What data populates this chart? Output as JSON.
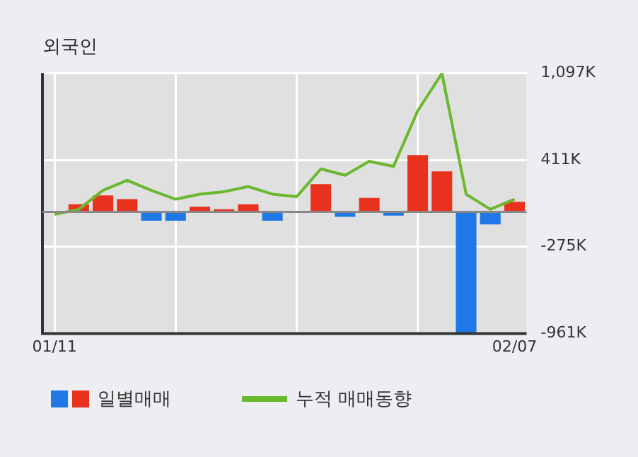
{
  "chart_data": {
    "type": "bar",
    "title": "외국인",
    "categories": [
      "01/11",
      null,
      null,
      null,
      null,
      null,
      null,
      null,
      null,
      null,
      null,
      null,
      null,
      null,
      null,
      null,
      null,
      null,
      null,
      "02/07"
    ],
    "series": [
      {
        "name": "일별매매",
        "colors": [
          "#1e78e6",
          "#e8321e",
          "#e8321e",
          "#e8321e",
          "#1e78e6",
          "#1e78e6",
          "#e8321e",
          "#e8321e",
          "#e8321e",
          "#1e78e6",
          "#e8321e",
          "#e8321e",
          "#1e78e6",
          "#e8321e",
          "#1e78e6",
          "#e8321e",
          "#e8321e",
          "#1e78e6",
          "#1e78e6",
          "#e8321e"
        ],
        "values": [
          null,
          60,
          130,
          100,
          -70,
          -70,
          40,
          20,
          60,
          -70,
          0,
          220,
          -40,
          110,
          -30,
          450,
          320,
          -960,
          -100,
          80
        ]
      },
      {
        "name": "누적 매매동향",
        "type": "line",
        "color": "#6ab82e",
        "values": [
          -20,
          20,
          170,
          250,
          170,
          100,
          140,
          160,
          200,
          140,
          120,
          340,
          290,
          400,
          360,
          800,
          1097,
          140,
          20,
          100
        ]
      }
    ],
    "ylim": [
      -965,
      1100
    ],
    "yticks": [
      {
        "value": 1097,
        "label": "1,097K"
      },
      {
        "value": 411,
        "label": "411K"
      },
      {
        "value": -275,
        "label": "-275K"
      },
      {
        "value": -961,
        "label": "-961K"
      }
    ],
    "grid": true,
    "legend": "bottom",
    "marker": "none"
  }
}
